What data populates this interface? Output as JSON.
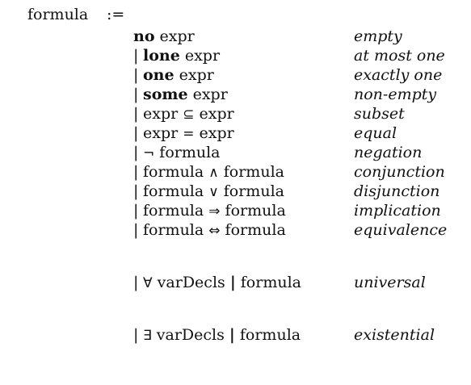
{
  "grammar": {
    "lhs": "formula",
    "assign": ":=",
    "bar": "|",
    "rows": [
      {
        "kw": "no",
        "rest": " expr",
        "desc": "empty"
      },
      {
        "kw": "lone",
        "rest": " expr",
        "desc": "at most one"
      },
      {
        "kw": "one",
        "rest": " expr",
        "desc": "exactly one"
      },
      {
        "kw": "some",
        "rest": " expr",
        "desc": "non-empty"
      },
      {
        "left": "expr ",
        "sym": "⊆",
        "right": " expr",
        "desc": "subset"
      },
      {
        "left": "expr ",
        "sym": "=",
        "right": " expr",
        "desc": "equal"
      },
      {
        "left": "",
        "sym": "¬",
        "right": " formula",
        "desc": "negation"
      },
      {
        "left": "formula ",
        "sym": "∧",
        "right": " formula",
        "desc": "conjunction"
      },
      {
        "left": "formula ",
        "sym": "∨",
        "right": " formula",
        "desc": "disjunction"
      },
      {
        "left": "formula ",
        "sym": "⇒",
        "right": " formula",
        "desc": "implication"
      },
      {
        "left": "formula ",
        "sym": "⇔",
        "right": " formula",
        "desc": "equivalence"
      },
      {
        "q": "∀",
        "decl": " varDecls ",
        "right": " formula",
        "desc": "universal"
      },
      {
        "q": "∃",
        "decl": " varDecls ",
        "right": " formula",
        "desc": "existential"
      }
    ]
  }
}
